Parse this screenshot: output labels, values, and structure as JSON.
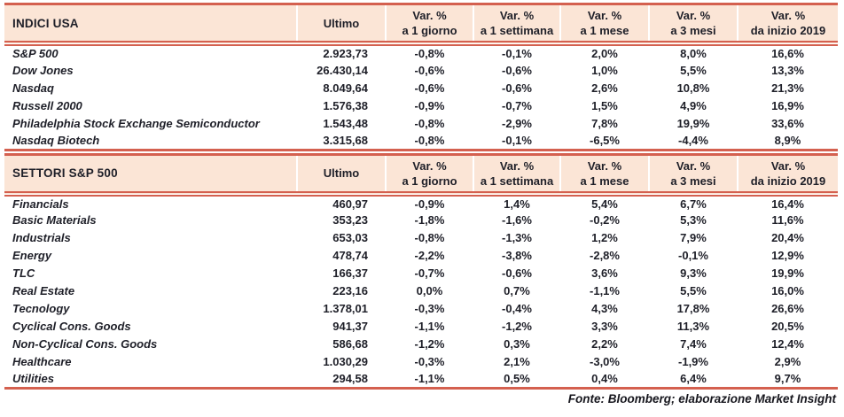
{
  "colors": {
    "accent_red": "#d4604f",
    "header_bg": "#fbe5d6",
    "text": "#1e1f28"
  },
  "columns": {
    "ultimo": "Ultimo",
    "var_headers": [
      {
        "line1": "Var. %",
        "line2": "a 1 giorno"
      },
      {
        "line1": "Var. %",
        "line2": "a 1 settimana"
      },
      {
        "line1": "Var. %",
        "line2": "a 1 mese"
      },
      {
        "line1": "Var. %",
        "line2": "a 3 mesi"
      },
      {
        "line1": "Var. %",
        "line2": "da inizio 2019"
      }
    ]
  },
  "tables": [
    {
      "title": "INDICI USA",
      "rows": [
        [
          "S&P 500",
          "2.923,73",
          "-0,8%",
          "-0,1%",
          "2,0%",
          "8,0%",
          "16,6%"
        ],
        [
          "Dow Jones",
          "26.430,14",
          "-0,6%",
          "-0,6%",
          "1,0%",
          "5,5%",
          "13,3%"
        ],
        [
          "Nasdaq",
          "8.049,64",
          "-0,6%",
          "-0,6%",
          "2,6%",
          "10,8%",
          "21,3%"
        ],
        [
          "Russell 2000",
          "1.576,38",
          "-0,9%",
          "-0,7%",
          "1,5%",
          "4,9%",
          "16,9%"
        ],
        [
          "Philadelphia Stock Exchange Semiconductor",
          "1.543,48",
          "-0,8%",
          "-2,9%",
          "7,8%",
          "19,9%",
          "33,6%"
        ],
        [
          "Nasdaq Biotech",
          "3.315,68",
          "-0,8%",
          "-0,1%",
          "-6,5%",
          "-4,4%",
          "8,9%"
        ]
      ]
    },
    {
      "title": "SETTORI S&P 500",
      "rows": [
        [
          "Financials",
          "460,97",
          "-0,9%",
          "1,4%",
          "5,4%",
          "6,7%",
          "16,4%"
        ],
        [
          "Basic Materials",
          "353,23",
          "-1,8%",
          "-1,6%",
          "-0,2%",
          "5,3%",
          "11,6%"
        ],
        [
          "Industrials",
          "653,03",
          "-0,8%",
          "-1,3%",
          "1,2%",
          "7,9%",
          "20,4%"
        ],
        [
          "Energy",
          "478,74",
          "-2,2%",
          "-3,8%",
          "-2,8%",
          "-0,1%",
          "12,9%"
        ],
        [
          "TLC",
          "166,37",
          "-0,7%",
          "-0,6%",
          "3,6%",
          "9,3%",
          "19,9%"
        ],
        [
          "Real Estate",
          "223,16",
          "0,0%",
          "0,7%",
          "-1,1%",
          "5,5%",
          "16,0%"
        ],
        [
          "Tecnology",
          "1.378,01",
          "-0,3%",
          "-0,4%",
          "4,3%",
          "17,8%",
          "26,6%"
        ],
        [
          "Cyclical Cons. Goods",
          "941,37",
          "-1,1%",
          "-1,2%",
          "3,3%",
          "11,3%",
          "20,5%"
        ],
        [
          "Non-Cyclical Cons. Goods",
          "586,68",
          "-1,2%",
          "0,3%",
          "2,2%",
          "7,4%",
          "12,4%"
        ],
        [
          "Healthcare",
          "1.030,29",
          "-0,3%",
          "2,1%",
          "-3,0%",
          "-1,9%",
          "2,9%"
        ],
        [
          "Utilities",
          "294,58",
          "-1,1%",
          "0,5%",
          "0,4%",
          "6,4%",
          "9,7%"
        ]
      ]
    }
  ],
  "footer": "Fonte: Bloomberg; elaborazione Market Insight"
}
